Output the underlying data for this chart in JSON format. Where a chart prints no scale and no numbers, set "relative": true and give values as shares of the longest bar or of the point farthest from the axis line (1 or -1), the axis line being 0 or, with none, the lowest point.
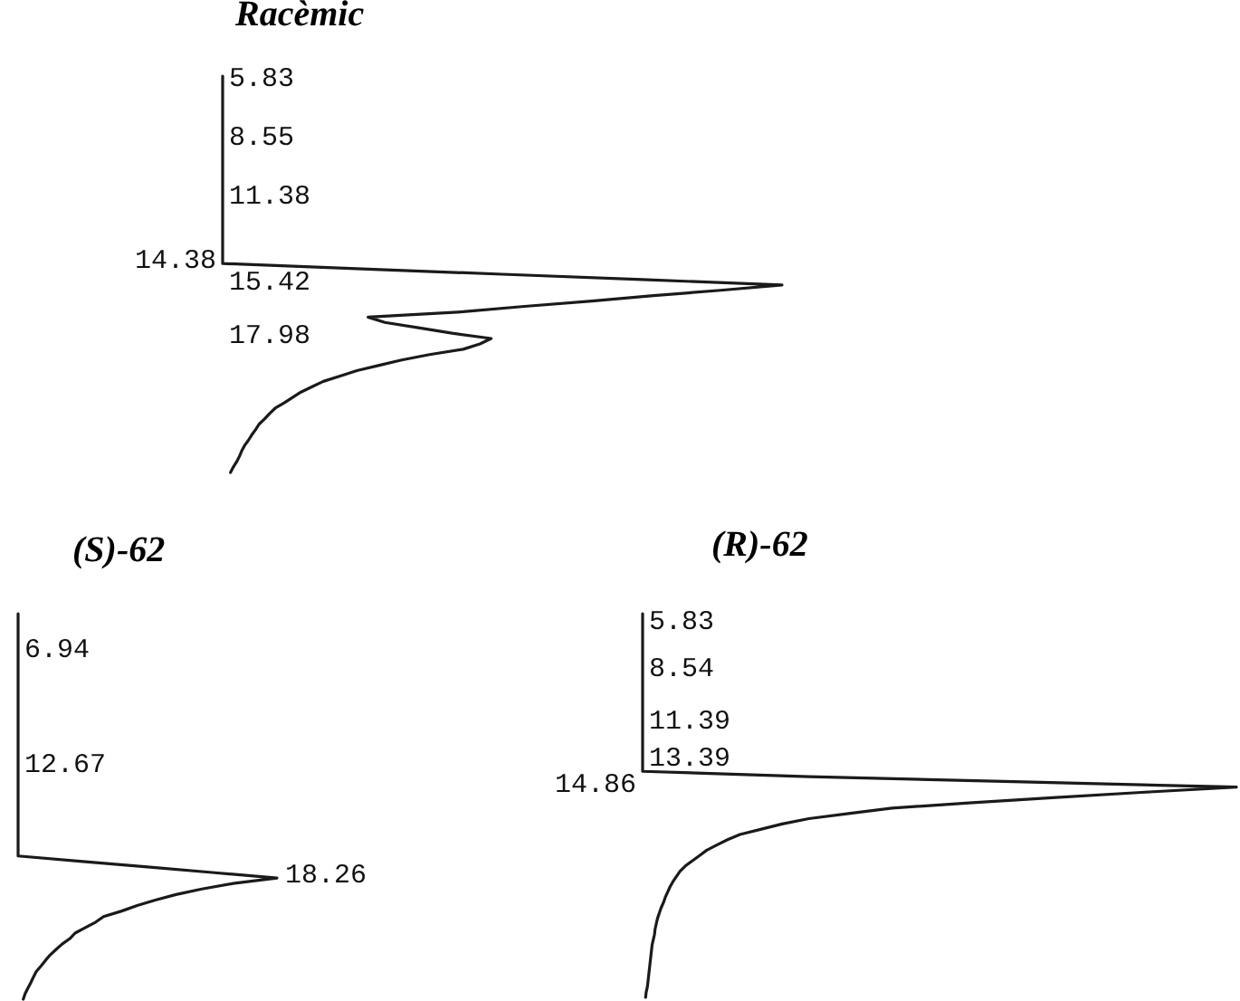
{
  "chart_data": [
    {
      "type": "line",
      "title": "Racèmic",
      "orientation": "horizontal",
      "relative": true,
      "color": "#1a1a1a",
      "categories": [
        null,
        "5.83",
        null,
        null,
        null,
        null,
        null,
        null,
        null,
        null,
        null,
        null,
        "8.55",
        null,
        null,
        null,
        null,
        null,
        null,
        null,
        null,
        null,
        null,
        "11.38",
        null,
        null,
        null,
        null,
        null,
        null,
        null,
        null,
        null,
        null,
        null,
        "14.38",
        null,
        null,
        null,
        "15.42",
        null,
        null,
        null,
        null,
        null,
        null,
        null,
        null,
        null,
        "17.98",
        null,
        null,
        null,
        null,
        null,
        null,
        null,
        null,
        null,
        null,
        null,
        null,
        null,
        null,
        null,
        null,
        null,
        null,
        null,
        null,
        null,
        null,
        null,
        null,
        null
      ],
      "values": [
        0,
        0,
        0,
        0,
        0,
        0,
        0,
        0,
        0,
        0,
        0,
        0,
        0,
        0,
        0,
        0,
        0,
        0,
        0,
        0,
        0,
        0,
        0,
        0,
        0,
        0,
        0,
        0,
        0,
        0,
        0,
        0,
        0,
        0,
        0,
        0,
        0.25,
        0.5,
        0.75,
        1,
        0.89,
        0.77,
        0.66,
        0.54,
        0.43,
        0.26,
        0.29,
        0.35,
        0.41,
        0.48,
        0.46,
        0.43,
        0.37,
        0.32,
        0.28,
        0.24,
        0.21,
        0.18,
        0.16,
        0.14,
        0.125,
        0.11,
        0.094,
        0.084,
        0.075,
        0.065,
        0.059,
        0.052,
        0.046,
        0.039,
        0.034,
        0.03,
        0.025,
        0.019,
        0.014
      ]
    },
    {
      "type": "line",
      "title": "(S)-62",
      "orientation": "horizontal",
      "relative": true,
      "color": "#1a1a1a",
      "categories": [
        null,
        null,
        null,
        null,
        null,
        null,
        null,
        "6.94",
        null,
        null,
        null,
        null,
        null,
        null,
        null,
        null,
        null,
        null,
        null,
        null,
        null,
        null,
        null,
        null,
        null,
        null,
        null,
        null,
        "12.67",
        null,
        null,
        null,
        null,
        null,
        null,
        null,
        null,
        null,
        null,
        null,
        null,
        null,
        null,
        null,
        null,
        null,
        null,
        null,
        "18.26",
        null,
        null,
        null,
        null,
        null,
        null,
        null,
        null,
        null,
        null,
        null,
        null,
        null,
        null,
        null,
        null,
        null,
        null,
        null,
        null,
        null,
        null
      ],
      "values": [
        0,
        0,
        0,
        0,
        0,
        0,
        0,
        0,
        0,
        0,
        0,
        0,
        0,
        0,
        0,
        0,
        0,
        0,
        0,
        0,
        0,
        0,
        0,
        0,
        0,
        0,
        0,
        0,
        0,
        0,
        0,
        0,
        0,
        0,
        0,
        0,
        0,
        0,
        0,
        0,
        0,
        0,
        0,
        0,
        0,
        0.25,
        0.5,
        0.75,
        1,
        0.83,
        0.71,
        0.61,
        0.53,
        0.46,
        0.4,
        0.33,
        0.3,
        0.26,
        0.22,
        0.2,
        0.17,
        0.146,
        0.123,
        0.105,
        0.088,
        0.07,
        0.059,
        0.049,
        0.038,
        0.027,
        0.02
      ]
    },
    {
      "type": "line",
      "title": "(R)-62",
      "orientation": "horizontal",
      "relative": true,
      "color": "#1a1a1a",
      "categories": [
        null,
        null,
        "5.83",
        null,
        null,
        null,
        null,
        null,
        null,
        null,
        null,
        "8.54",
        null,
        null,
        null,
        null,
        null,
        null,
        null,
        null,
        null,
        "11.39",
        null,
        null,
        null,
        null,
        null,
        null,
        "13.39",
        null,
        null,
        null,
        null,
        "14.86",
        null,
        null,
        null,
        null,
        null,
        null,
        null,
        null,
        null,
        null,
        null,
        null,
        null,
        null,
        null,
        null,
        null,
        null,
        null,
        null,
        null,
        null,
        null,
        null,
        null,
        null,
        null,
        null,
        null,
        null,
        null,
        null,
        null,
        null,
        null,
        null,
        null,
        null,
        null,
        null
      ],
      "values": [
        0,
        0,
        0,
        0,
        0,
        0,
        0,
        0,
        0,
        0,
        0,
        0,
        0,
        0,
        0,
        0,
        0,
        0,
        0,
        0,
        0,
        0,
        0,
        0,
        0,
        0,
        0,
        0,
        0,
        0,
        0,
        0.28,
        0.64,
        1,
        0.84,
        0.69,
        0.55,
        0.42,
        0.35,
        0.28,
        0.235,
        0.2,
        0.164,
        0.143,
        0.125,
        0.108,
        0.096,
        0.084,
        0.072,
        0.063,
        0.057,
        0.051,
        0.046,
        0.042,
        0.038,
        0.035,
        0.031,
        0.028,
        0.025,
        0.023,
        0.021,
        0.02,
        0.018,
        0.016,
        0.015,
        0.014,
        0.013,
        0.012,
        0.011,
        0.01,
        0.009,
        0.008,
        0.006,
        0.005
      ]
    }
  ]
}
